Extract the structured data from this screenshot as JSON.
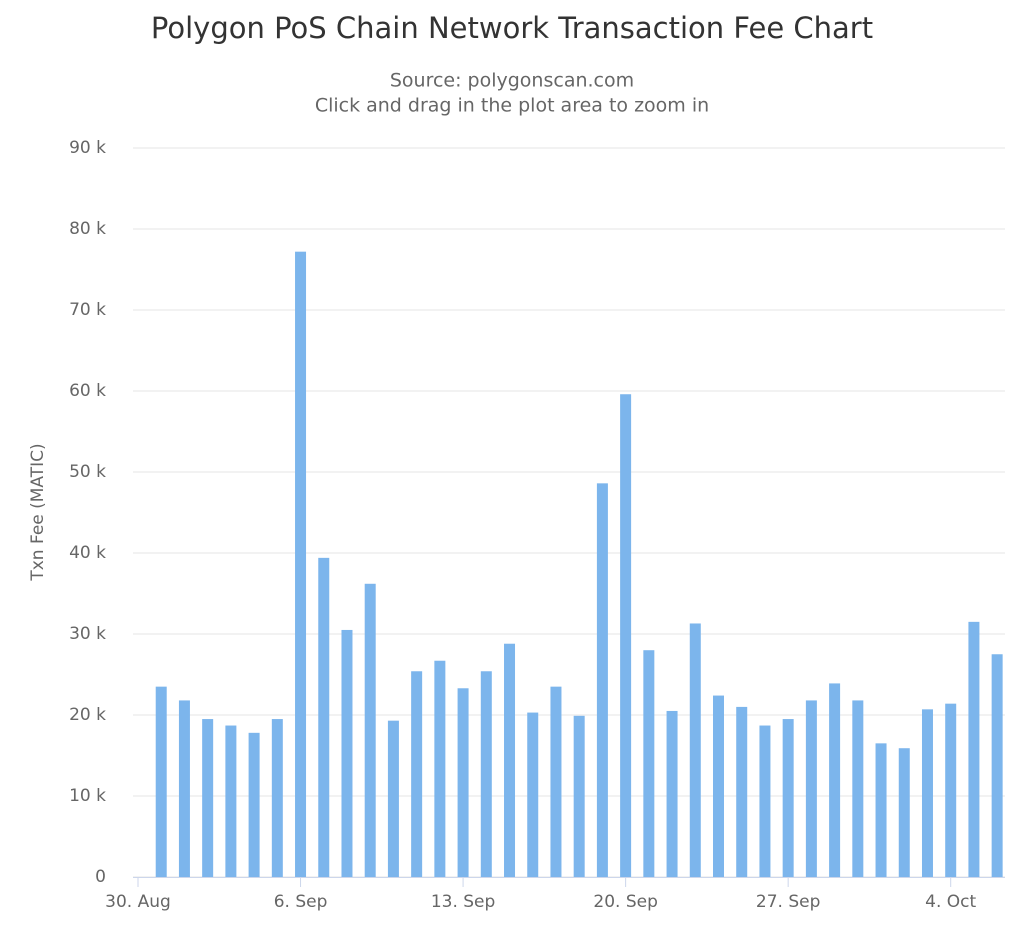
{
  "chart_data": {
    "type": "bar",
    "title": "Polygon PoS Chain Network Transaction Fee Chart",
    "subtitle": [
      "Source: polygonscan.com",
      "Click and drag in the plot area to zoom in"
    ],
    "y_label": "Txn Fee (MATIC)",
    "x": [
      "Aug 31",
      "Sep 1",
      "Sep 2",
      "Sep 3",
      "Sep 4",
      "Sep 5",
      "Sep 6",
      "Sep 7",
      "Sep 8",
      "Sep 9",
      "Sep 10",
      "Sep 11",
      "Sep 12",
      "Sep 13",
      "Sep 14",
      "Sep 15",
      "Sep 16",
      "Sep 17",
      "Sep 18",
      "Sep 19",
      "Sep 20",
      "Sep 21",
      "Sep 22",
      "Sep 23",
      "Sep 24",
      "Sep 25",
      "Sep 26",
      "Sep 27",
      "Sep 28",
      "Sep 29",
      "Sep 30",
      "Oct 1",
      "Oct 2",
      "Oct 3",
      "Oct 4",
      "Oct 5",
      "Oct 6"
    ],
    "values": [
      23500,
      21800,
      19500,
      18700,
      17800,
      19500,
      77200,
      39400,
      30500,
      36200,
      19300,
      25400,
      26700,
      23300,
      25400,
      28800,
      20300,
      23500,
      19900,
      48600,
      59600,
      28000,
      20500,
      31300,
      22400,
      21000,
      18700,
      19500,
      21800,
      23900,
      21800,
      16500,
      15900,
      20700,
      21400,
      31500,
      27500
    ],
    "color": "#7cb5ec",
    "ylim": [
      0,
      90000
    ],
    "yticks": [
      0,
      {
        "value": 10000,
        "label": "10 k"
      },
      {
        "value": 20000,
        "label": "20 k"
      },
      {
        "value": 30000,
        "label": "30 k"
      },
      {
        "value": 40000,
        "label": "40 k"
      },
      {
        "value": 50000,
        "label": "50 k"
      },
      {
        "value": 60000,
        "label": "60 k"
      },
      {
        "value": 70000,
        "label": "70 k"
      },
      {
        "value": 80000,
        "label": "80 k"
      },
      {
        "value": 90000,
        "label": "90 k"
      }
    ],
    "xticks": [
      {
        "value": "Aug 30",
        "label": "30. Aug"
      },
      {
        "value": "Sep 6",
        "label": "6. Sep"
      },
      {
        "value": "Sep 13",
        "label": "13. Sep"
      },
      {
        "value": "Sep 20",
        "label": "20. Sep"
      },
      {
        "value": "Sep 27",
        "label": "27. Sep"
      },
      {
        "value": "Oct 4",
        "label": "4. Oct"
      }
    ],
    "grid": true
  }
}
